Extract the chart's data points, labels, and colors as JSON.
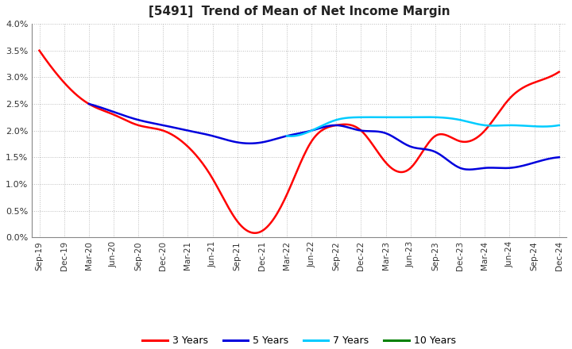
{
  "title": "[5491]  Trend of Mean of Net Income Margin",
  "ylim": [
    0.0,
    0.04
  ],
  "yticks": [
    0.0,
    0.005,
    0.01,
    0.015,
    0.02,
    0.025,
    0.03,
    0.035,
    0.04
  ],
  "ytick_labels": [
    "0.0%",
    "0.5%",
    "1.0%",
    "1.5%",
    "2.0%",
    "2.5%",
    "3.0%",
    "3.5%",
    "4.0%"
  ],
  "background_color": "#ffffff",
  "plot_bg_color": "#ffffff",
  "grid_color": "#aaaaaa",
  "x_labels": [
    "Sep-19",
    "Dec-19",
    "Mar-20",
    "Jun-20",
    "Sep-20",
    "Dec-20",
    "Mar-21",
    "Jun-21",
    "Sep-21",
    "Dec-21",
    "Mar-22",
    "Jun-22",
    "Sep-22",
    "Dec-22",
    "Mar-23",
    "Jun-23",
    "Sep-23",
    "Dec-23",
    "Mar-24",
    "Jun-24",
    "Sep-24",
    "Dec-24"
  ],
  "series": {
    "3 Years": {
      "color": "#ff0000",
      "values": [
        0.035,
        0.029,
        0.025,
        0.023,
        0.021,
        0.02,
        0.017,
        0.011,
        0.003,
        0.0012,
        0.008,
        0.018,
        0.021,
        0.02,
        0.014,
        0.013,
        0.019,
        0.018,
        0.02,
        0.026,
        0.029,
        0.031
      ]
    },
    "5 Years": {
      "color": "#0000dd",
      "values": [
        null,
        null,
        0.025,
        0.0235,
        0.022,
        0.021,
        0.02,
        0.019,
        0.0178,
        0.0178,
        0.019,
        0.02,
        0.021,
        0.02,
        0.0195,
        0.017,
        0.016,
        0.013,
        0.013,
        0.013,
        0.014,
        0.015
      ]
    },
    "7 Years": {
      "color": "#00ccff",
      "values": [
        null,
        null,
        null,
        null,
        null,
        null,
        null,
        null,
        null,
        null,
        0.019,
        0.02,
        0.022,
        0.0225,
        0.0225,
        0.0225,
        0.0225,
        0.022,
        0.021,
        0.021,
        0.0208,
        0.021
      ]
    },
    "10 Years": {
      "color": "#008000",
      "values": [
        null,
        null,
        null,
        null,
        null,
        null,
        null,
        null,
        null,
        null,
        null,
        null,
        null,
        null,
        null,
        null,
        null,
        null,
        null,
        null,
        null,
        null
      ]
    }
  },
  "legend_labels": [
    "3 Years",
    "5 Years",
    "7 Years",
    "10 Years"
  ],
  "legend_colors": [
    "#ff0000",
    "#0000dd",
    "#00ccff",
    "#008000"
  ]
}
